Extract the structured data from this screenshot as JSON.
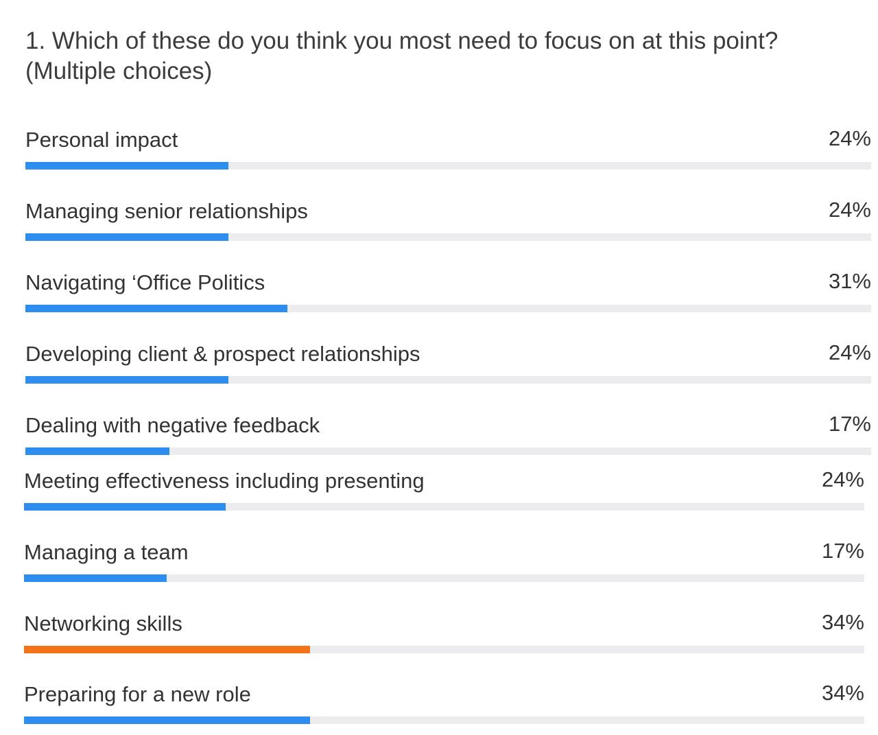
{
  "question": {
    "text": "1. Which of these do you think you most need to focus on at this point?",
    "subtext": "(Multiple choices)"
  },
  "colors": {
    "bar_default": "#2e8ef0",
    "bar_leading": "#f47318",
    "track": "#ececee"
  },
  "options": [
    {
      "label": "Personal impact",
      "percent_text": "24%",
      "value": 24,
      "leading": false
    },
    {
      "label": "Managing senior relationships",
      "percent_text": "24%",
      "value": 24,
      "leading": false
    },
    {
      "label": "Navigating ‘Office Politics",
      "percent_text": "31%",
      "value": 31,
      "leading": false
    },
    {
      "label": "Developing client & prospect relationships",
      "percent_text": "24%",
      "value": 24,
      "leading": false
    },
    {
      "label": "Dealing with negative feedback",
      "percent_text": "17%",
      "value": 17,
      "leading": false
    },
    {
      "label": "Meeting effectiveness including presenting",
      "percent_text": "24%",
      "value": 24,
      "leading": false
    },
    {
      "label": "Managing a team",
      "percent_text": "17%",
      "value": 17,
      "leading": false
    },
    {
      "label": "Networking skills",
      "percent_text": "34%",
      "value": 34,
      "leading": true
    },
    {
      "label": "Preparing for a new role",
      "percent_text": "34%",
      "value": 34,
      "leading": false
    }
  ]
}
